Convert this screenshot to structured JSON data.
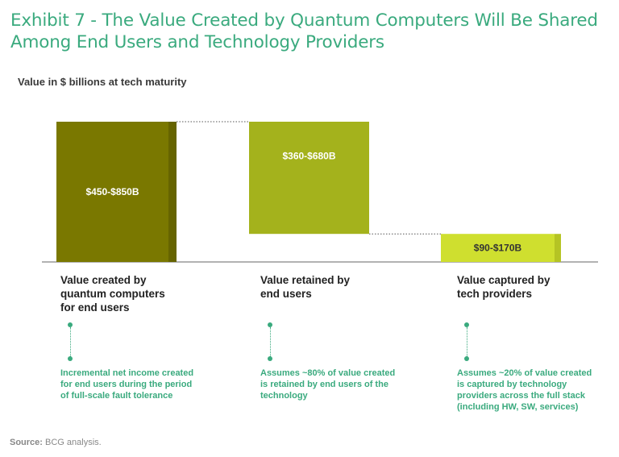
{
  "title": "Exhibit 7 - The Value Created by Quantum Computers Will Be Shared Among End Users and Technology Providers",
  "subtitle": "Value in $ billions at tech maturity",
  "source_label": "Source:",
  "source_text": "BCG analysis.",
  "colors": {
    "bar1": "#7a7800",
    "bar1_side": "#666400",
    "bar2": "#a4b21c",
    "bar2_side": "#8f9b16",
    "bar3": "#cfdf2f",
    "bar3_side": "#b5c424",
    "accent": "#3aaa7e",
    "axis": "#999999"
  },
  "chart_data": {
    "type": "bar",
    "subtype": "waterfall",
    "categories": [
      "Value created by quantum computers for end users",
      "Value retained by end users",
      "Value captured by tech providers"
    ],
    "value_labels": [
      "$450-$850B",
      "$360-$680B",
      "$90-$170B"
    ],
    "ranges": [
      [
        450,
        850
      ],
      [
        360,
        680
      ],
      [
        90,
        170
      ]
    ],
    "steps": [
      {
        "start": 0,
        "end": 100
      },
      {
        "start": 20,
        "end": 100
      },
      {
        "start": 0,
        "end": 20
      }
    ],
    "ylim": [
      0,
      100
    ]
  },
  "columns": [
    {
      "label_lines": [
        "Value created by",
        "quantum computers",
        "for end users"
      ],
      "note_lines": [
        "Incremental net income created",
        "for end users during the period",
        "of full-scale fault tolerance"
      ]
    },
    {
      "label_lines": [
        "Value retained by",
        "end users"
      ],
      "note_lines": [
        "Assumes ~80% of value created",
        "is retained by end users of the",
        "technology"
      ]
    },
    {
      "label_lines": [
        "Value captured by",
        "tech providers"
      ],
      "note_lines": [
        "Assumes ~20% of value created",
        "is captured by technology",
        "providers across the full stack",
        "(including HW, SW, services)"
      ]
    }
  ]
}
